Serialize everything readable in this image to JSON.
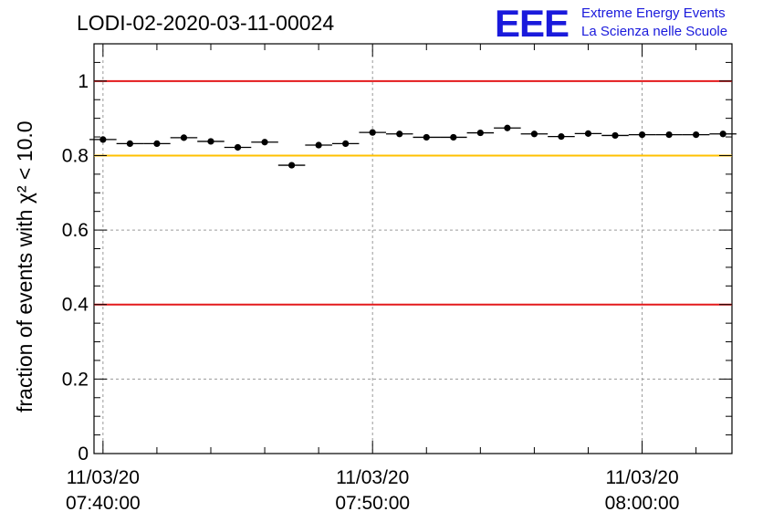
{
  "title": "LODI-02-2020-03-11-00024",
  "logo": {
    "mark": "EEE",
    "line1": "Extreme Energy Events",
    "line2": "La Scienza nelle Scuole",
    "color": "#1a1adc"
  },
  "chart_data": {
    "type": "scatter",
    "title": "LODI-02-2020-03-11-00024",
    "ylabel": "fraction of events with χ² < 10.0",
    "xlabel": "",
    "ylim": [
      0,
      1.1
    ],
    "yticks": [
      0,
      0.2,
      0.4,
      0.6,
      0.8,
      1
    ],
    "ytick_labels": [
      "0",
      "0.2",
      "0.4",
      "0.6",
      "0.8",
      "1"
    ],
    "xlim": [
      "2020-03-11 07:39:40",
      "2020-03-11 08:03:20"
    ],
    "xtick_labels": [
      {
        "t": "2020-03-11 07:40:00",
        "line1": "11/03/20",
        "line2": "07:40:00"
      },
      {
        "t": "2020-03-11 07:50:00",
        "line1": "11/03/20",
        "line2": "07:50:00"
      },
      {
        "t": "2020-03-11 08:00:00",
        "line1": "11/03/20",
        "line2": "08:00:00"
      }
    ],
    "grid": true,
    "reference_lines": [
      {
        "y": 1.0,
        "color": "#e31a1c"
      },
      {
        "y": 0.8,
        "color": "#ffc000"
      },
      {
        "y": 0.4,
        "color": "#e31a1c"
      }
    ],
    "bin_width_seconds": 60,
    "series": [
      {
        "marker_color": "#000000",
        "x": [
          "07:40:00",
          "07:41:00",
          "07:42:00",
          "07:43:00",
          "07:44:00",
          "07:45:00",
          "07:46:00",
          "07:47:00",
          "07:48:00",
          "07:49:00",
          "07:50:00",
          "07:51:00",
          "07:52:00",
          "07:53:00",
          "07:54:00",
          "07:55:00",
          "07:56:00",
          "07:57:00",
          "07:58:00",
          "07:59:00",
          "08:00:00",
          "08:01:00",
          "08:02:00",
          "08:03:00"
        ],
        "y": [
          0.843,
          0.832,
          0.832,
          0.848,
          0.838,
          0.822,
          0.836,
          0.774,
          0.828,
          0.832,
          0.862,
          0.858,
          0.849,
          0.849,
          0.861,
          0.874,
          0.858,
          0.851,
          0.859,
          0.854,
          0.856,
          0.856,
          0.856,
          0.858
        ]
      }
    ]
  }
}
